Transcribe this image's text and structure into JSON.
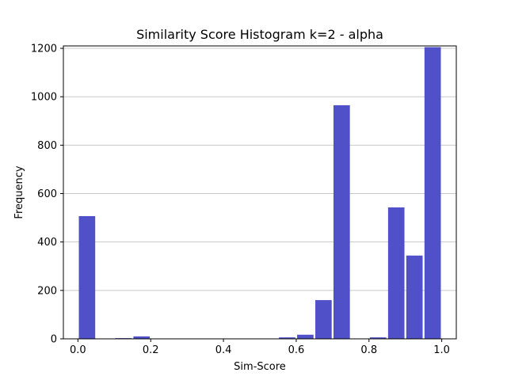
{
  "chart_data": {
    "type": "bar",
    "title": "Similarity Score Histogram k=2 - alpha",
    "xlabel": "Sim-Score",
    "ylabel": "Frequency",
    "xlim": [
      -0.04,
      1.04
    ],
    "ylim": [
      0,
      1210
    ],
    "x_ticks": [
      0.0,
      0.2,
      0.4,
      0.6,
      0.8,
      1.0
    ],
    "x_tick_labels": [
      "0.0",
      "0.2",
      "0.4",
      "0.6",
      "0.8",
      "1.0"
    ],
    "y_ticks": [
      0,
      200,
      400,
      600,
      800,
      1000,
      1200
    ],
    "y_tick_labels": [
      "0",
      "200",
      "400",
      "600",
      "800",
      "1000",
      "1200"
    ],
    "grid": "horizontal",
    "bar_color": "#5050c8",
    "bin_width": 0.05,
    "bins": [
      {
        "start": 0.0,
        "value": 507
      },
      {
        "start": 0.05,
        "value": 0
      },
      {
        "start": 0.1,
        "value": 3
      },
      {
        "start": 0.15,
        "value": 10
      },
      {
        "start": 0.2,
        "value": 0
      },
      {
        "start": 0.25,
        "value": 0
      },
      {
        "start": 0.3,
        "value": 0
      },
      {
        "start": 0.35,
        "value": 0
      },
      {
        "start": 0.4,
        "value": 0
      },
      {
        "start": 0.45,
        "value": 0
      },
      {
        "start": 0.5,
        "value": 0
      },
      {
        "start": 0.55,
        "value": 6
      },
      {
        "start": 0.6,
        "value": 17
      },
      {
        "start": 0.65,
        "value": 160
      },
      {
        "start": 0.7,
        "value": 965
      },
      {
        "start": 0.75,
        "value": 0
      },
      {
        "start": 0.8,
        "value": 6
      },
      {
        "start": 0.85,
        "value": 543
      },
      {
        "start": 0.9,
        "value": 344
      },
      {
        "start": 0.95,
        "value": 1205
      }
    ]
  }
}
